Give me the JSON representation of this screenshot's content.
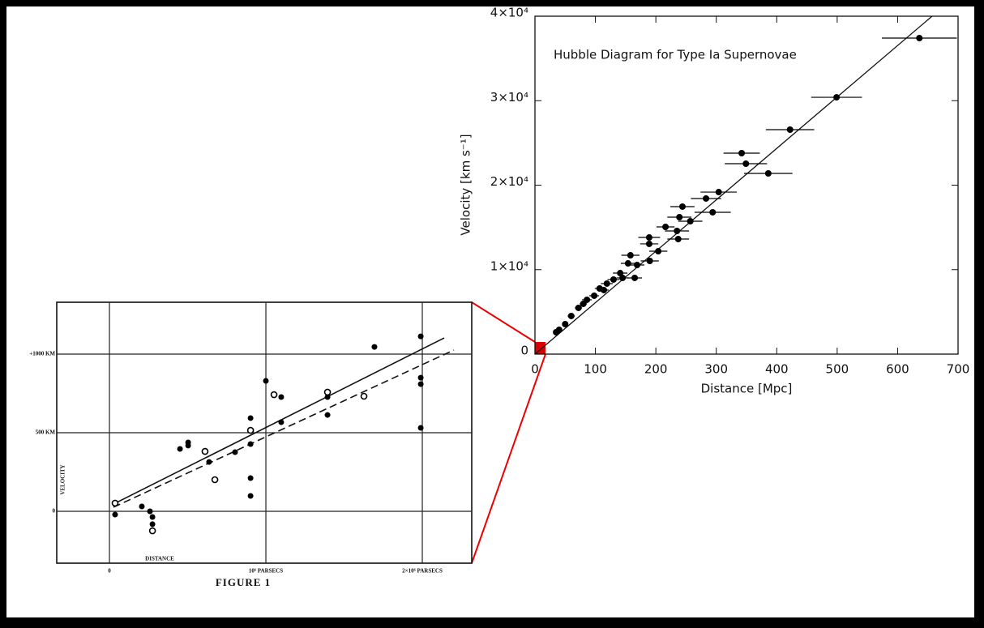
{
  "chart_data": [
    {
      "type": "scatter",
      "title": "Hubble Diagram for Type Ia Supernovae",
      "xlabel": "Distance [Mpc]",
      "ylabel": "Velocity [km s⁻¹]",
      "xlim": [
        0,
        700
      ],
      "ylim": [
        0,
        40000
      ],
      "xticks": [
        0,
        100,
        200,
        300,
        400,
        500,
        600,
        700
      ],
      "yticks": [
        0,
        {
          "value": 10000,
          "label": "1×10⁴"
        },
        {
          "value": 20000,
          "label": "2×10⁴"
        },
        {
          "value": 30000,
          "label": "3×10⁴"
        },
        {
          "value": 40000,
          "label": "4×10⁴"
        }
      ],
      "grid": false,
      "series": [
        {
          "color": "#000",
          "marker": "filled-circle",
          "x": [
            636,
            499,
            422,
            342,
            349,
            386,
            304,
            283,
            294,
            244,
            257,
            235,
            216,
            239,
            189,
            189,
            237,
            204,
            158,
            190,
            154,
            169,
            141,
            165,
            130,
            119,
            107,
            98,
            86,
            72,
            60,
            50,
            40,
            35,
            145,
            114,
            80
          ],
          "values": [
            37410,
            30400,
            26570,
            23790,
            22540,
            21390,
            19180,
            18420,
            16790,
            17460,
            15730,
            14580,
            15060,
            16210,
            13810,
            13050,
            13620,
            12180,
            11700,
            11030,
            10740,
            10550,
            9590,
            9020,
            8830,
            8350,
            7770,
            6910,
            6430,
            5470,
            4510,
            3550,
            2880,
            2590,
            9020,
            7580,
            5950
          ],
          "xerr": [
            62,
            42,
            40,
            30,
            35,
            40,
            30,
            25,
            30,
            20,
            20,
            20,
            15,
            20,
            18,
            15,
            18,
            15,
            15,
            15,
            12,
            12,
            12,
            12,
            10,
            10,
            8,
            8,
            8,
            6,
            6,
            5,
            5,
            4,
            10,
            8,
            6
          ]
        }
      ],
      "fit_lines": [
        {
          "x": [
            0,
            657
          ],
          "values": [
            0,
            40000
          ],
          "dash": false
        }
      ]
    },
    {
      "type": "scatter",
      "caption": "FIGURE 1",
      "xlabel": "DISTANCE",
      "ylabel": "VELOCITY",
      "xlim": [
        -337000,
        2316000
      ],
      "ylim": [
        -330,
        1330
      ],
      "xticks": [
        0,
        {
          "value": 1000000,
          "label": "10⁶ PARSECS"
        },
        {
          "value": 2000000,
          "label": "2×10⁶ PARSECS"
        }
      ],
      "yticks": [
        0,
        {
          "value": 500,
          "label": "500 KM"
        },
        {
          "value": 1000,
          "label": "+1000 KM"
        }
      ],
      "grid": true,
      "series": [
        {
          "color": "#000",
          "marker": "filled-circle",
          "x": [
            36000,
            207000,
            259000,
            275000,
            275000,
            451000,
            503000,
            503000,
            637000,
            803000,
            902000,
            902000,
            902000,
            902000,
            1000000,
            1098000,
            1098000,
            1394000,
            1394000,
            1694000,
            1990000,
            1990000,
            1990000,
            1990000
          ],
          "values": [
            -21,
            31,
            0,
            -36,
            -82,
            397,
            438,
            418,
            314,
            376,
            593,
            428,
            211,
            98,
            830,
            727,
            567,
            613,
            727,
            1046,
            1113,
            850,
            809,
            531
          ]
        },
        {
          "color": "#000",
          "marker": "open-circle",
          "x": [
            36000,
            275000,
            611000,
            674000,
            902000,
            1052000,
            1394000,
            1627000
          ],
          "values": [
            52,
            -124,
            381,
            201,
            515,
            742,
            758,
            732
          ]
        }
      ],
      "fit_lines": [
        {
          "x": [
            25900,
            2140000
          ],
          "values": [
            46,
            1103
          ],
          "dash": false
        },
        {
          "x": [
            25900,
            2202000
          ],
          "values": [
            26,
            1026
          ],
          "dash": true
        }
      ]
    }
  ]
}
